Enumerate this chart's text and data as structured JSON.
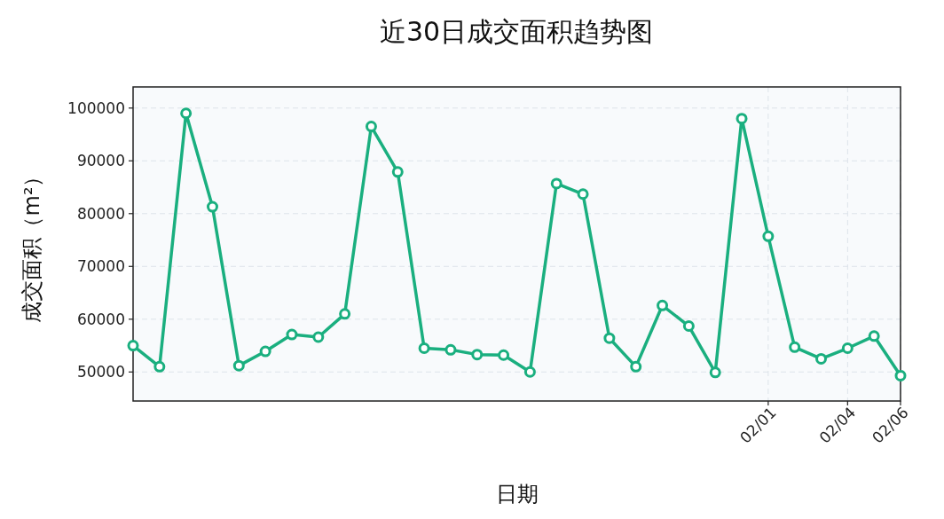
{
  "chart_data": {
    "type": "line",
    "title": "近30日成交面积趋势图",
    "xlabel": "日期",
    "ylabel": "成交面积（m²）",
    "x": [
      "--01-08",
      "--01-09",
      "--01-10",
      "--01-11",
      "--01-12",
      "--01-13",
      "--01-14",
      "--01-15",
      "--01-16",
      "--01-17",
      "--01-18",
      "--01-19",
      "--01-20",
      "--01-21",
      "--01-22",
      "--01-23",
      "--01-24",
      "--01-25",
      "--01-26",
      "--01-27",
      "--01-28",
      "--01-29",
      "--01-30",
      "--01-31",
      "--02-01",
      "--02-02",
      "--02-03",
      "--02-04",
      "--02-05",
      "--02-06"
    ],
    "series": [
      {
        "color": "#1aaf7f",
        "values": [
          55000,
          51000,
          99000,
          81300,
          51200,
          53900,
          57100,
          56600,
          61000,
          96500,
          87900,
          54500,
          54200,
          53300,
          53200,
          50000,
          85700,
          83700,
          56400,
          51000,
          62600,
          58700,
          49900,
          98000,
          75700,
          54700,
          52500,
          54500,
          56800,
          49300
        ]
      }
    ],
    "xlim": [
      "--01-08",
      "--02-06"
    ],
    "ylim": [
      44500,
      104000
    ],
    "xticks": [
      {
        "value": "--02-01",
        "label": "02/01"
      },
      {
        "value": "--02-04",
        "label": "02/04"
      },
      {
        "value": "--02-06",
        "label": "02/06"
      }
    ],
    "yticks": [
      50000,
      60000,
      70000,
      80000,
      90000,
      100000
    ],
    "grid": true,
    "marker": "circle"
  }
}
